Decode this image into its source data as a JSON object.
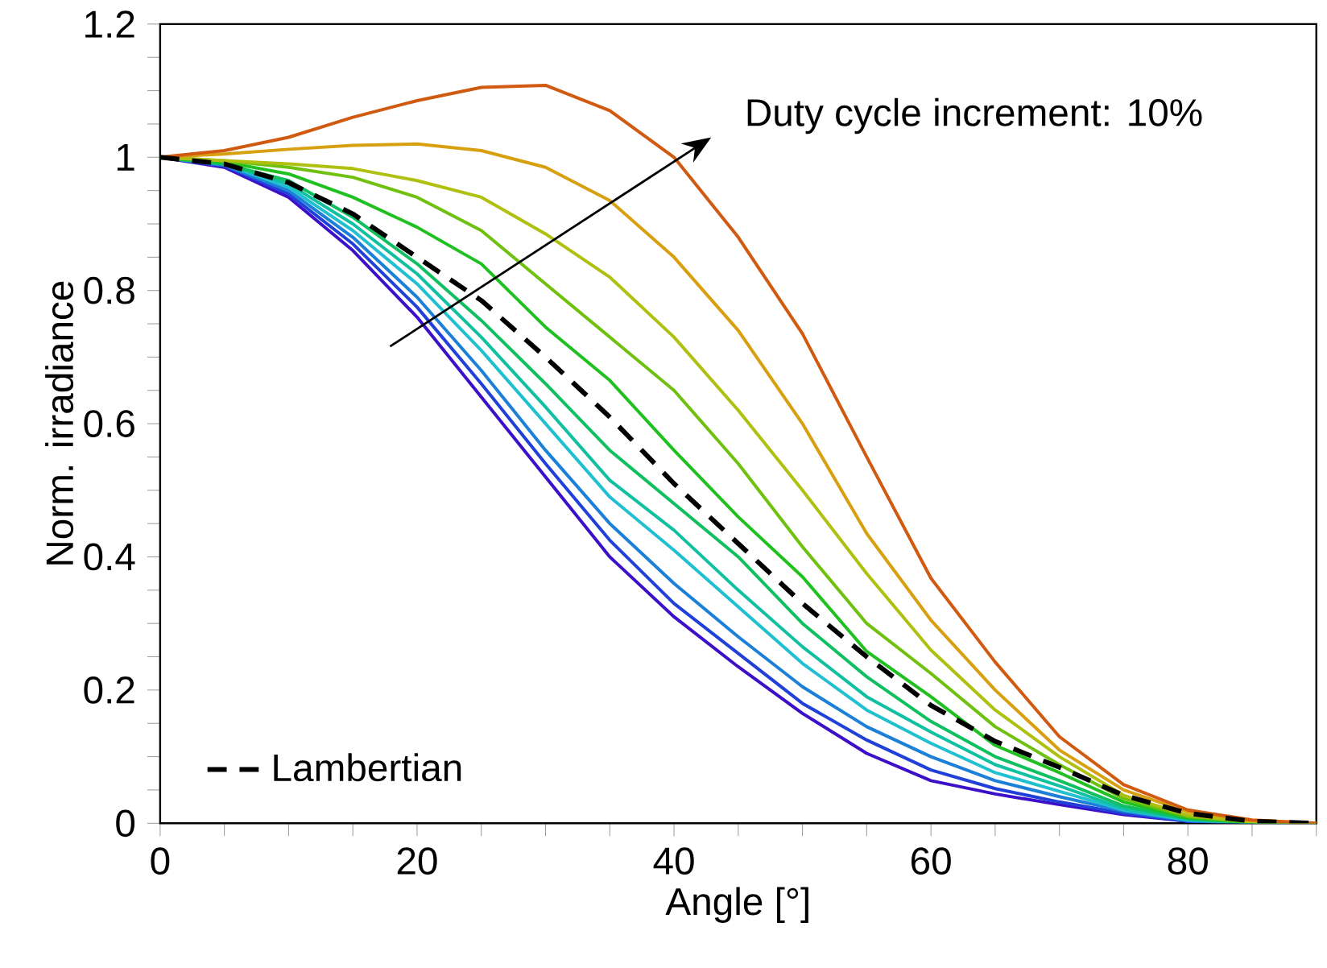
{
  "chart_data": {
    "type": "line",
    "xlabel": "Angle [°]",
    "ylabel": "Norm. irradiance",
    "x": [
      0,
      5,
      10,
      15,
      20,
      25,
      30,
      35,
      40,
      45,
      50,
      55,
      60,
      65,
      70,
      75,
      80,
      85,
      90
    ],
    "xlim": [
      0,
      90
    ],
    "ylim": [
      0,
      1.2
    ],
    "xticks": [
      0,
      {
        "value": 5,
        "label": null
      },
      {
        "value": 10,
        "label": null
      },
      {
        "value": 15,
        "label": null
      },
      20,
      {
        "value": 25,
        "label": null
      },
      {
        "value": 30,
        "label": null
      },
      {
        "value": 35,
        "label": null
      },
      40,
      {
        "value": 45,
        "label": null
      },
      {
        "value": 50,
        "label": null
      },
      {
        "value": 55,
        "label": null
      },
      60,
      {
        "value": 65,
        "label": null
      },
      {
        "value": 70,
        "label": null
      },
      {
        "value": 75,
        "label": null
      },
      80,
      {
        "value": 85,
        "label": null
      },
      {
        "value": 90,
        "label": null
      }
    ],
    "yticks": [
      0,
      {
        "value": 0.05,
        "label": null
      },
      {
        "value": 0.1,
        "label": null
      },
      {
        "value": 0.15,
        "label": null
      },
      0.2,
      {
        "value": 0.25,
        "label": null
      },
      {
        "value": 0.3,
        "label": null
      },
      {
        "value": 0.35,
        "label": null
      },
      0.4,
      {
        "value": 0.45,
        "label": null
      },
      {
        "value": 0.5,
        "label": null
      },
      {
        "value": 0.55,
        "label": null
      },
      0.6,
      {
        "value": 0.65,
        "label": null
      },
      {
        "value": 0.7,
        "label": null
      },
      {
        "value": 0.75,
        "label": null
      },
      0.8,
      {
        "value": 0.85,
        "label": null
      },
      {
        "value": 0.9,
        "label": null
      },
      {
        "value": 0.95,
        "label": null
      },
      1,
      {
        "value": 1.05,
        "label": null
      },
      {
        "value": 1.1,
        "label": null
      },
      {
        "value": 1.15,
        "label": null
      },
      1.2
    ],
    "legend": "bottom left",
    "annotations": [
      "Duty cycle increment: 10%"
    ],
    "series": [
      {
        "color": "#3c10c8",
        "values": [
          1,
          0.985,
          0.94,
          0.86,
          0.76,
          0.64,
          0.52,
          0.4,
          0.31,
          0.235,
          0.165,
          0.105,
          0.064,
          0.044,
          0.028,
          0.013,
          0.003,
          null,
          null
        ]
      },
      {
        "color": "#2040d8",
        "values": [
          1,
          0.987,
          0.945,
          0.87,
          0.775,
          0.66,
          0.54,
          0.425,
          0.33,
          0.255,
          0.18,
          0.125,
          0.08,
          0.052,
          0.032,
          0.015,
          0.003,
          0,
          0
        ]
      },
      {
        "color": "#1c80d8",
        "values": [
          1,
          0.988,
          0.95,
          0.88,
          0.79,
          0.68,
          0.56,
          0.45,
          0.36,
          0.28,
          0.205,
          0.145,
          0.1,
          0.064,
          0.04,
          0.018,
          0.004,
          0,
          0
        ]
      },
      {
        "color": "#20c0d0",
        "values": [
          1,
          0.99,
          0.955,
          0.89,
          0.81,
          0.71,
          0.6,
          0.49,
          0.41,
          0.325,
          0.24,
          0.17,
          0.12,
          0.076,
          0.048,
          0.02,
          0.005,
          0.001,
          0
        ]
      },
      {
        "color": "#10c0a0",
        "values": [
          1,
          0.99,
          0.96,
          0.9,
          0.825,
          0.73,
          0.625,
          0.515,
          0.44,
          0.35,
          0.265,
          0.19,
          0.137,
          0.088,
          0.056,
          0.022,
          0.006,
          0.001,
          0
        ]
      },
      {
        "color": "#10c060",
        "values": [
          1,
          0.99,
          0.965,
          0.91,
          0.84,
          0.755,
          0.66,
          0.56,
          0.48,
          0.4,
          0.3,
          0.22,
          0.153,
          0.1,
          0.064,
          0.026,
          0.007,
          0.001,
          0
        ]
      },
      {
        "color": "#20c020",
        "values": [
          1,
          0.993,
          0.975,
          0.94,
          0.895,
          0.84,
          0.745,
          0.665,
          0.56,
          0.46,
          0.37,
          0.258,
          0.19,
          0.117,
          0.076,
          0.032,
          0.008,
          0.001,
          0
        ]
      },
      {
        "color": "#70c010",
        "values": [
          1,
          0.995,
          0.985,
          0.97,
          0.94,
          0.89,
          0.81,
          0.73,
          0.65,
          0.54,
          0.415,
          0.3,
          0.225,
          0.145,
          0.088,
          0.037,
          0.01,
          0.002,
          0
        ]
      },
      {
        "color": "#b0c010",
        "values": [
          1,
          0.995,
          0.99,
          0.983,
          0.965,
          0.94,
          0.885,
          0.82,
          0.73,
          0.62,
          0.5,
          0.375,
          0.26,
          0.17,
          0.1,
          0.042,
          0.012,
          0.002,
          0
        ]
      },
      {
        "color": "#d8a010",
        "values": [
          1,
          1.005,
          1.012,
          1.018,
          1.02,
          1.01,
          0.985,
          0.935,
          0.85,
          0.74,
          0.6,
          0.435,
          0.305,
          0.2,
          0.11,
          0.05,
          0.017,
          0.004,
          0
        ]
      },
      {
        "color": "#d05a10",
        "values": [
          1,
          1.01,
          1.03,
          1.06,
          1.085,
          1.105,
          1.108,
          1.07,
          1.0,
          0.88,
          0.735,
          0.55,
          0.368,
          0.242,
          0.13,
          0.058,
          0.02,
          0.005,
          0
        ]
      },
      {
        "name": "Lambertian",
        "color": "#000000",
        "line_style": "dashed",
        "values": [
          1,
          0.99,
          0.962,
          0.915,
          0.85,
          0.785,
          0.7,
          0.61,
          0.51,
          0.42,
          0.33,
          0.25,
          0.177,
          0.123,
          0.084,
          0.042,
          0.015,
          0.003,
          0
        ]
      }
    ]
  }
}
